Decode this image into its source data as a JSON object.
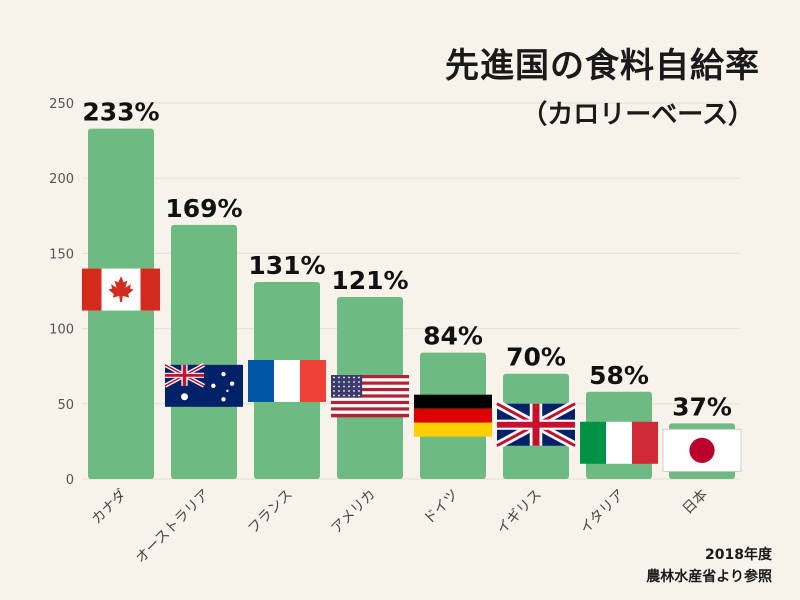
{
  "title": "先進国の食料自給率",
  "subtitle": "（カロリーベース）",
  "source": {
    "line1": "2018年度",
    "line2": "農林水産省より参照"
  },
  "chart_data": {
    "type": "bar",
    "categories": [
      "カナダ",
      "オーストラリア",
      "フランス",
      "アメリカ",
      "ドイツ",
      "イギリス",
      "イタリア",
      "日本"
    ],
    "values": [
      233,
      169,
      131,
      121,
      84,
      70,
      58,
      37
    ],
    "value_labels": [
      "233%",
      "169%",
      "131%",
      "121%",
      "84%",
      "70%",
      "58%",
      "37%"
    ],
    "flags": [
      "canada-flag",
      "australia-flag",
      "france-flag",
      "usa-flag",
      "germany-flag",
      "uk-flag",
      "italy-flag",
      "japan-flag"
    ],
    "ylim": [
      0,
      250
    ],
    "yticks": [
      0,
      50,
      100,
      150,
      200,
      250
    ],
    "grid": true,
    "bar_color": "#6dbb82",
    "grid_color": "#e4dfd5"
  }
}
